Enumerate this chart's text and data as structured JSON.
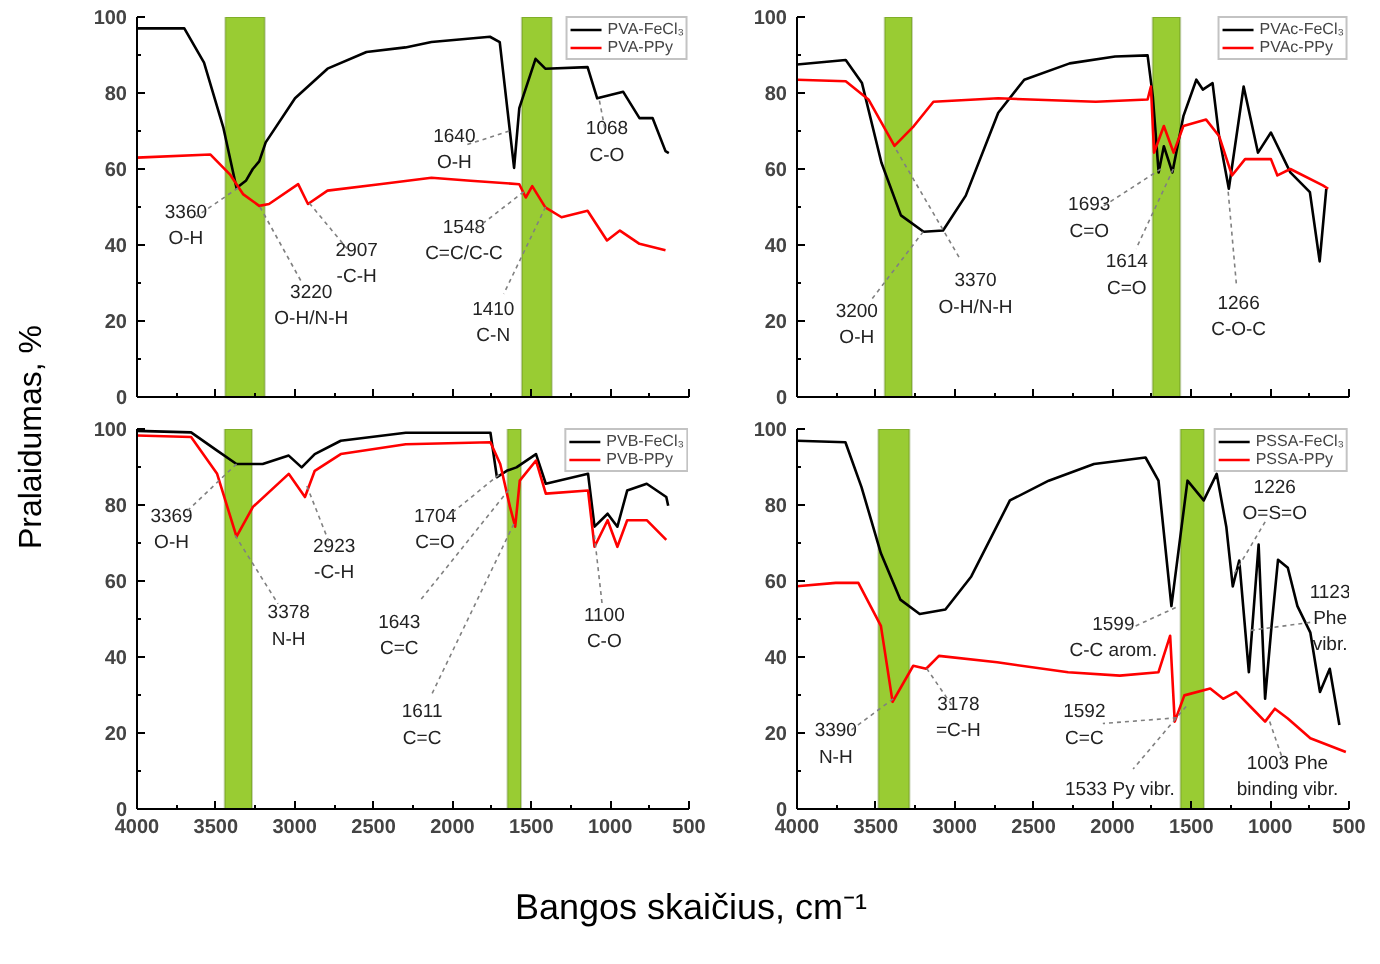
{
  "chart_data": [
    {
      "type": "line",
      "xlim": [
        4000,
        500
      ],
      "ylim": [
        0,
        100
      ],
      "xticks": [
        4000,
        3500,
        3000,
        2500,
        2000,
        1500,
        1000,
        500
      ],
      "yticks": [
        0,
        20,
        40,
        60,
        80,
        100
      ],
      "tick_labels": "y",
      "legend": "top right",
      "series": [
        {
          "name": "PVA-FeCl₃",
          "color": "#000000",
          "x": [
            4000,
            3700,
            3575,
            3452,
            3369,
            3308,
            3266,
            3225,
            3184,
            2998,
            2792,
            2545,
            2298,
            2133,
            1762,
            1700,
            1638,
            1609,
            1576,
            1473,
            1411,
            1143,
            1082,
            917,
            814,
            731,
            649,
            628
          ],
          "values": [
            97,
            97,
            88,
            70.8,
            55,
            57,
            60,
            62,
            67,
            78.6,
            86.4,
            90.8,
            92,
            93.4,
            94.8,
            93.4,
            70.8,
            60.3,
            76,
            89,
            86.4,
            86.8,
            78.6,
            80.3,
            73.4,
            73.4,
            64.7,
            64.2
          ]
        },
        {
          "name": "PVA-PPy",
          "color": "#ff0000",
          "x": [
            4000,
            3534,
            3411,
            3328,
            3225,
            3163,
            2978,
            2916,
            2792,
            2462,
            2133,
            1885,
            1576,
            1535,
            1494,
            1411,
            1308,
            1143,
            1020,
            938,
            814,
            649
          ],
          "values": [
            63,
            63.8,
            58.6,
            53.4,
            50.3,
            50.8,
            56,
            50.8,
            54.3,
            56,
            57.7,
            56.9,
            56,
            52.5,
            55.5,
            49.9,
            47.3,
            49,
            41.2,
            43.8,
            40.3,
            38.6
          ]
        }
      ],
      "bands": [
        {
          "axis": "x",
          "from": 3440,
          "to": 3190,
          "color": "#99cc33"
        },
        {
          "axis": "x",
          "from": 1560,
          "to": 1370,
          "color": "#99cc33"
        }
      ],
      "annotations": [
        {
          "text": "3360\nO-H",
          "x": 3360,
          "y": 55
        },
        {
          "text": "3220\nO-H/N-H",
          "x": 3220,
          "y": 50
        },
        {
          "text": "2907\n-C-H",
          "x": 2907,
          "y": 51
        },
        {
          "text": "1548\nC=C/C-C",
          "x": 1548,
          "y": 54
        },
        {
          "text": "1410\nC-N",
          "x": 1410,
          "y": 50
        },
        {
          "text": "1640\nO-H",
          "x": 1640,
          "y": 70
        },
        {
          "text": "1068\nC-O",
          "x": 1068,
          "y": 78
        }
      ]
    },
    {
      "type": "line",
      "xlim": [
        4000,
        500
      ],
      "ylim": [
        0,
        100
      ],
      "xticks": [
        4000,
        3500,
        3000,
        2500,
        2000,
        1500,
        1000,
        500
      ],
      "yticks": [
        0,
        20,
        40,
        60,
        80,
        100
      ],
      "tick_labels": "y",
      "legend": "top right",
      "series": [
        {
          "name": "PVAc-FeCl₃",
          "color": "#000000",
          "x": [
            4000,
            3691,
            3588,
            3465,
            3341,
            3197,
            3074,
            2930,
            2724,
            2559,
            2271,
            1983,
            1777,
            1744,
            1707,
            1674,
            1620,
            1550,
            1468,
            1427,
            1365,
            1324,
            1262,
            1168,
            1077,
            995,
            872,
            748,
            686,
            644
          ],
          "values": [
            87.5,
            88.7,
            82.6,
            61.7,
            47.8,
            43.5,
            43.8,
            53,
            74.8,
            83.5,
            87.8,
            89.6,
            89.9,
            79.1,
            59.1,
            66,
            59.1,
            73.9,
            83.5,
            80.9,
            82.6,
            68.7,
            54.8,
            81.7,
            64.3,
            69.6,
            59.1,
            53.9,
            35.7,
            54.8
          ]
        },
        {
          "name": "PVAc-PPy",
          "color": "#ff0000",
          "x": [
            4000,
            3691,
            3547,
            3382,
            3259,
            3135,
            2724,
            2106,
            1777,
            1756,
            1736,
            1674,
            1612,
            1550,
            1406,
            1324,
            1242,
            1159,
            995,
            954,
            872,
            666,
            632
          ],
          "values": [
            83.5,
            83.1,
            78.3,
            66.1,
            71.3,
            77.7,
            78.6,
            77.7,
            78.3,
            81.7,
            64.3,
            71.3,
            64.3,
            71.3,
            73,
            68.7,
            58.3,
            62.6,
            62.6,
            58.3,
            60,
            55.7,
            54.8
          ]
        }
      ],
      "bands": [
        {
          "axis": "x",
          "from": 3444,
          "to": 3271,
          "color": "#99cc33"
        },
        {
          "axis": "x",
          "from": 1745,
          "to": 1570,
          "color": "#99cc33"
        }
      ],
      "annotations": [
        {
          "text": "3200\nO-H",
          "x": 3200,
          "y": 43.5
        },
        {
          "text": "3370\nO-H/N-H",
          "x": 3370,
          "y": 65
        },
        {
          "text": "1693\nC=O",
          "x": 1693,
          "y": 60
        },
        {
          "text": "1614\nC=O",
          "x": 1614,
          "y": 60
        },
        {
          "text": "1266\nC-O-C",
          "x": 1266,
          "y": 54
        }
      ]
    },
    {
      "type": "line",
      "xlim": [
        4000,
        500
      ],
      "ylim": [
        0,
        100
      ],
      "xticks": [
        4000,
        3500,
        3000,
        2500,
        2000,
        1500,
        1000,
        500
      ],
      "yticks": [
        0,
        20,
        40,
        60,
        80,
        100
      ],
      "legend": "top right",
      "xlabel": "Bangos skaičius, cm⁻¹",
      "ylabel": "Pralaidumas, %",
      "series": [
        {
          "name": "PVB-FeCl₃",
          "color": "#000000",
          "x": [
            4000,
            3657,
            3492,
            3369,
            3203,
            3038,
            2956,
            2873,
            2708,
            2296,
            1759,
            1718,
            1656,
            1594,
            1470,
            1408,
            1140,
            1099,
            1016,
            954,
            892,
            768,
            644,
            632
          ],
          "values": [
            99.5,
            99.1,
            94.3,
            90.8,
            90.8,
            93,
            89.9,
            93.4,
            96.9,
            99,
            99,
            87.3,
            89,
            89.9,
            93.4,
            85.6,
            88.2,
            74.3,
            77.7,
            74.3,
            83.8,
            85.6,
            82.1,
            79.8
          ]
        },
        {
          "name": "PVB-PPy",
          "color": "#ff0000",
          "x": [
            4000,
            3657,
            3492,
            3369,
            3265,
            3038,
            2935,
            2873,
            2708,
            2296,
            1759,
            1697,
            1635,
            1602,
            1573,
            1470,
            1408,
            1140,
            1099,
            1016,
            954,
            892,
            768,
            644
          ],
          "values": [
            98.3,
            97.9,
            88.2,
            71.7,
            79.5,
            88.2,
            82.1,
            89,
            93.4,
            96,
            96.5,
            90.8,
            79.5,
            74.3,
            86.4,
            91.7,
            83,
            83.8,
            69,
            76,
            69,
            76,
            76,
            70.8
          ]
        }
      ],
      "bands": [
        {
          "axis": "x",
          "from": 3444,
          "to": 3271,
          "color": "#99cc33"
        },
        {
          "axis": "x",
          "from": 1651,
          "to": 1565,
          "color": "#99cc33"
        }
      ],
      "annotations": [
        {
          "text": "3369\nO-H",
          "x": 3369,
          "y": 90.8
        },
        {
          "text": "3378\nN-H",
          "x": 3378,
          "y": 72
        },
        {
          "text": "2923\n-C-H",
          "x": 2923,
          "y": 85
        },
        {
          "text": "1704\nC=O",
          "x": 1704,
          "y": 88
        },
        {
          "text": "1643\nC=C",
          "x": 1643,
          "y": 84
        },
        {
          "text": "1611\nC=C",
          "x": 1611,
          "y": 75
        },
        {
          "text": "1100\nC-O",
          "x": 1100,
          "y": 72
        }
      ]
    },
    {
      "type": "line",
      "xlim": [
        4000,
        500
      ],
      "ylim": [
        0,
        100
      ],
      "xticks": [
        4000,
        3500,
        3000,
        2500,
        2000,
        1500,
        1000,
        500
      ],
      "yticks": [
        0,
        20,
        40,
        60,
        80,
        100
      ],
      "legend": "top right",
      "series": [
        {
          "name": "PSSA-FeCl₃",
          "color": "#000000",
          "x": [
            4000,
            3693,
            3591,
            3468,
            3345,
            3222,
            3059,
            2895,
            2650,
            2404,
            2117,
            1790,
            1708,
            1626,
            1524,
            1421,
            1339,
            1278,
            1237,
            1196,
            1135,
            1073,
            1032,
            991,
            950,
            888,
            827,
            745,
            684,
            622,
            561
          ],
          "values": [
            96.9,
            96.5,
            84.7,
            67.3,
            55.1,
            51.3,
            52.5,
            61.2,
            81.2,
            86.4,
            90.8,
            92.5,
            86.4,
            53.4,
            86.4,
            81.2,
            88.2,
            74.3,
            58.6,
            65.4,
            36,
            69.6,
            29,
            48.2,
            65.6,
            63.5,
            53.4,
            46.4,
            30.8,
            36.9,
            22.1
          ]
        },
        {
          "name": "PSSA-PPy",
          "color": "#ff0000",
          "x": [
            4000,
            3754,
            3611,
            3468,
            3394,
            3263,
            3181,
            3100,
            2731,
            2281,
            1953,
            1708,
            1634,
            1605,
            1544,
            1380,
            1298,
            1216,
            1093,
            1032,
            970,
            888,
            745,
            520
          ],
          "values": [
            58.6,
            59.5,
            59.5,
            48.2,
            28.2,
            37.7,
            36.9,
            40.3,
            38.6,
            36,
            35.1,
            36,
            45.6,
            23,
            29.9,
            31.7,
            29,
            30.8,
            25.6,
            23,
            26.4,
            23.8,
            18.6,
            15
          ]
        }
      ],
      "bands": [
        {
          "axis": "x",
          "from": 3484,
          "to": 3287,
          "color": "#99cc33"
        },
        {
          "axis": "x",
          "from": 1568,
          "to": 1420,
          "color": "#99cc33"
        }
      ],
      "annotations": [
        {
          "text": "3390\nN-H",
          "x": 3390,
          "y": 29
        },
        {
          "text": "3178\n=C-H",
          "x": 3178,
          "y": 37
        },
        {
          "text": "1599\nC-C arom.",
          "x": 1599,
          "y": 53
        },
        {
          "text": "1592\nC=C",
          "x": 1592,
          "y": 24
        },
        {
          "text": "1533 Py vibr.",
          "x": 1533,
          "y": 27
        },
        {
          "text": "1226\nO=S=O",
          "x": 1226,
          "y": 62
        },
        {
          "text": "1123\nPhe\nvibr.",
          "x": 1123,
          "y": 47
        },
        {
          "text": "1003 Phe\nbinding vibr.",
          "x": 1003,
          "y": 23
        }
      ]
    }
  ]
}
